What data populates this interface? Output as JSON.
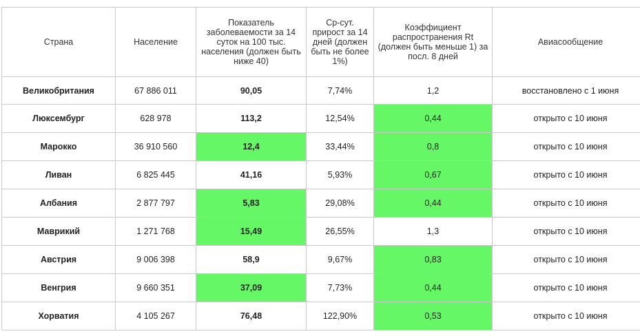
{
  "colors": {
    "highlight": "#66f766",
    "border": "#c9c9c9"
  },
  "headers": {
    "country": "Страна",
    "population": "Население",
    "incidence": "Показатель заболеваемости за 14 суток на 100 тыс. населения (должен быть ниже 40)",
    "growth": "Ср-сут. прирост за 14 дней (должен быть не более 1%)",
    "rt": "Коэффициент распространения Rt (должен быть меньше 1) за посл. 8 дней",
    "flights": "Авиасообщение"
  },
  "rows": [
    {
      "country": "Великобритания",
      "population": "67 886 011",
      "incidence": "90,05",
      "incidence_ok": false,
      "growth": "7,74%",
      "rt": "1,2",
      "rt_ok": false,
      "flights": "восстановлено с 1 июня"
    },
    {
      "country": "Люксембург",
      "population": "628 978",
      "incidence": "113,2",
      "incidence_ok": false,
      "growth": "12,54%",
      "rt": "0,44",
      "rt_ok": true,
      "flights": "открыто с 10 июня"
    },
    {
      "country": "Марокко",
      "population": "36 910 560",
      "incidence": "12,4",
      "incidence_ok": true,
      "growth": "33,44%",
      "rt": "0,8",
      "rt_ok": true,
      "flights": "открыто с 10 июня"
    },
    {
      "country": "Ливан",
      "population": "6 825 445",
      "incidence": "41,16",
      "incidence_ok": false,
      "growth": "5,93%",
      "rt": "0,67",
      "rt_ok": true,
      "flights": "открыто с 10 июня"
    },
    {
      "country": "Албания",
      "population": "2 877 797",
      "incidence": "5,83",
      "incidence_ok": true,
      "growth": "29,08%",
      "rt": "0,44",
      "rt_ok": true,
      "flights": "открыто с 10 июня"
    },
    {
      "country": "Маврикий",
      "population": "1 271 768",
      "incidence": "15,49",
      "incidence_ok": true,
      "growth": "26,55%",
      "rt": "1,3",
      "rt_ok": false,
      "flights": "открыто с 10 июня"
    },
    {
      "country": "Австрия",
      "population": "9 006 398",
      "incidence": "58,9",
      "incidence_ok": false,
      "growth": "9,67%",
      "rt": "0,83",
      "rt_ok": true,
      "flights": "открыто с 10 июня"
    },
    {
      "country": "Венгрия",
      "population": "9 660 351",
      "incidence": "37,09",
      "incidence_ok": true,
      "growth": "7,73%",
      "rt": "0,44",
      "rt_ok": true,
      "flights": "открыто с 10 июня"
    },
    {
      "country": "Хорватия",
      "population": "4 105 267",
      "incidence": "76,48",
      "incidence_ok": false,
      "growth": "122,90%",
      "rt": "0,53",
      "rt_ok": true,
      "flights": "открыто с 10 июня"
    }
  ]
}
